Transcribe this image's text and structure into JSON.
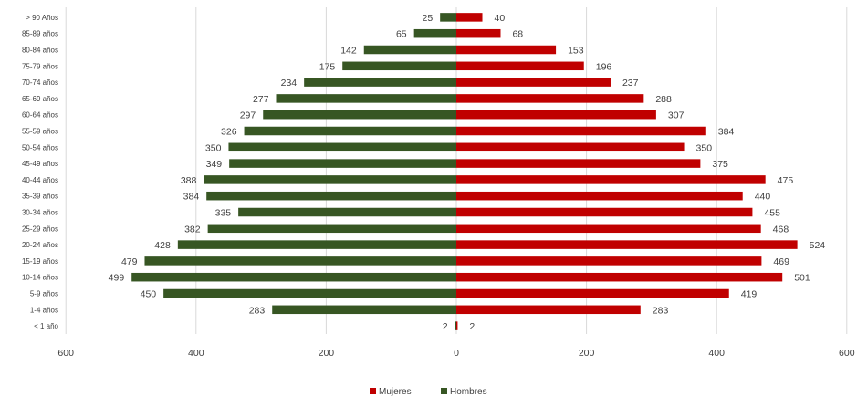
{
  "chart_data": {
    "type": "bar",
    "orientation": "horizontal",
    "style": "population-pyramid",
    "categories": [
      "> 90 Años",
      "85-89 años",
      "80-84 años",
      "75-79 años",
      "70-74 años",
      "65-69 años",
      "60-64 años",
      "55-59 años",
      "50-54 años",
      "45-49 años",
      "40-44 años",
      "35-39 años",
      "30-34 años",
      "25-29 años",
      "20-24 años",
      "15-19 años",
      "10-14 años",
      "5-9 años",
      "1-4 años",
      "< 1 año"
    ],
    "series": [
      {
        "name": "Mujeres",
        "side": "right",
        "color": "#c00000",
        "values": [
          40,
          68,
          153,
          196,
          237,
          288,
          307,
          384,
          350,
          375,
          475,
          440,
          455,
          468,
          524,
          469,
          501,
          419,
          283,
          2
        ]
      },
      {
        "name": "Hombres",
        "side": "left",
        "color": "#375623",
        "values": [
          25,
          65,
          142,
          175,
          234,
          277,
          297,
          326,
          350,
          349,
          388,
          384,
          335,
          382,
          428,
          479,
          499,
          450,
          283,
          2
        ]
      }
    ],
    "xticks": [
      "600",
      "400",
      "200",
      "0",
      "200",
      "400",
      "600"
    ],
    "xlim": [
      -600,
      600
    ],
    "grid": "vertical",
    "legend_position": "bottom",
    "title": "",
    "xlabel": "",
    "ylabel": ""
  }
}
